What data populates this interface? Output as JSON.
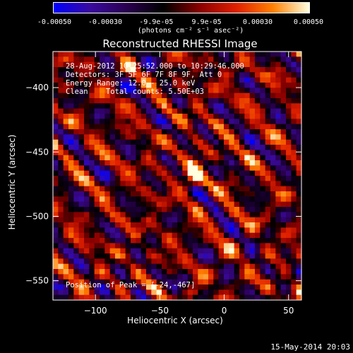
{
  "colorbar": {
    "tick_labels": [
      "-0.00050",
      "-0.00030",
      "-9.9e-05",
      "9.9e-05",
      "0.00030",
      "0.00050"
    ],
    "units": "(photons cm⁻² s⁻¹ asec⁻²)"
  },
  "footer": {
    "timestamp": "15-May-2014 20:03"
  },
  "chart_data": {
    "type": "heatmap",
    "title": "Reconstructed RHESSI Image",
    "xlabel": "Heliocentric X (arcsec)",
    "ylabel": "Heliocentric Y (arcsec)",
    "xlim": [
      -133,
      60
    ],
    "ylim": [
      -565,
      -372
    ],
    "x_ticks": [
      -100,
      -50,
      0,
      50
    ],
    "y_ticks": [
      -400,
      -450,
      -500,
      -550
    ],
    "x_tick_labels": [
      "−100",
      "−50",
      "0",
      "50"
    ],
    "y_tick_labels": [
      "−400",
      "−450",
      "−500",
      "−550"
    ],
    "value_range": [
      -0.0005,
      0.0005
    ],
    "peak_position": [
      -24,
      -467
    ],
    "colormap_stops": [
      "#0000ff",
      "#3a0aa0",
      "#2a0050",
      "#000000",
      "#8a0000",
      "#e02000",
      "#ff8000",
      "#ffffe0"
    ],
    "annotations": {
      "time_range": "28-Aug-2012 10:25:52.000 to 10:29:46.000",
      "detectors": "Detectors: 3F 5F 6F 7F 8F 9F, Att 0",
      "energy": "Energy Range: 12.0 - 25.0 keV",
      "method": "Clean    Total counts: 5.50E+03",
      "peak": "Position of Peak = [-24,-467]"
    }
  }
}
